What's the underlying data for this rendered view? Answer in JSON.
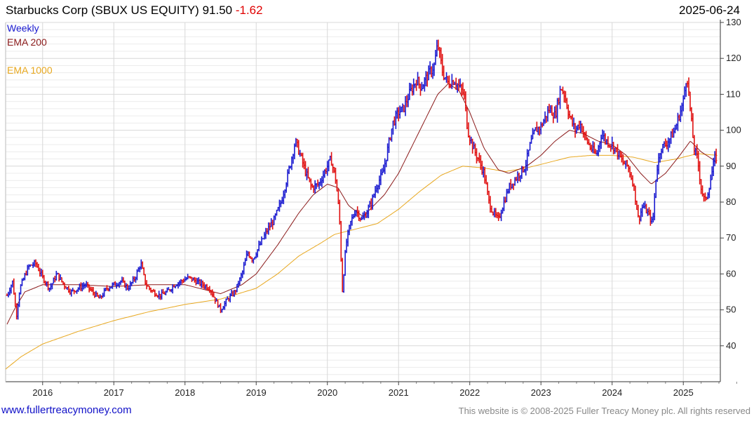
{
  "header": {
    "title": "Starbucks Corp (SBUX US EQUITY) 91.50",
    "change": "-1.62",
    "date": "2025-06-24"
  },
  "footer": {
    "link": "www.fullertreacymoney.com",
    "copyright": "This website is © 2008-2025 Fuller Treacy Money plc. All rights reserved"
  },
  "colors": {
    "up": "#1a1ad0",
    "down": "#e01010",
    "ema200": "#8b1a1a",
    "ema1000": "#e8a820",
    "grid": "#d8d8d8"
  },
  "chart_data": {
    "type": "line",
    "period": "Weekly",
    "legend": [
      "Weekly",
      "EMA 200",
      "EMA 1000"
    ],
    "ylim": [
      30,
      130
    ],
    "y_ticks": [
      40,
      50,
      60,
      70,
      80,
      90,
      100,
      110,
      120,
      130
    ],
    "x_ticks": [
      "2016",
      "2017",
      "2018",
      "2019",
      "2020",
      "2021",
      "2022",
      "2023",
      "2024",
      "2025"
    ],
    "xlim": [
      2015.48,
      2025.52
    ],
    "grid": true,
    "price": [
      [
        2015.5,
        54
      ],
      [
        2015.58,
        58
      ],
      [
        2015.63,
        48
      ],
      [
        2015.68,
        56
      ],
      [
        2015.8,
        62
      ],
      [
        2015.9,
        63
      ],
      [
        2016.0,
        59
      ],
      [
        2016.1,
        56
      ],
      [
        2016.2,
        60
      ],
      [
        2016.3,
        57
      ],
      [
        2016.4,
        55
      ],
      [
        2016.5,
        56
      ],
      [
        2016.6,
        57
      ],
      [
        2016.7,
        55
      ],
      [
        2016.8,
        53
      ],
      [
        2016.9,
        56
      ],
      [
        2017.0,
        57
      ],
      [
        2017.1,
        58
      ],
      [
        2017.2,
        56
      ],
      [
        2017.3,
        59
      ],
      [
        2017.38,
        63
      ],
      [
        2017.45,
        57
      ],
      [
        2017.55,
        55
      ],
      [
        2017.65,
        54
      ],
      [
        2017.75,
        55
      ],
      [
        2017.85,
        57
      ],
      [
        2017.95,
        58
      ],
      [
        2018.05,
        59
      ],
      [
        2018.15,
        58
      ],
      [
        2018.25,
        57
      ],
      [
        2018.35,
        56
      ],
      [
        2018.42,
        53
      ],
      [
        2018.5,
        50
      ],
      [
        2018.6,
        53
      ],
      [
        2018.7,
        55
      ],
      [
        2018.8,
        60
      ],
      [
        2018.88,
        66
      ],
      [
        2018.95,
        64
      ],
      [
        2019.05,
        68
      ],
      [
        2019.15,
        72
      ],
      [
        2019.25,
        75
      ],
      [
        2019.35,
        80
      ],
      [
        2019.45,
        88
      ],
      [
        2019.55,
        97
      ],
      [
        2019.62,
        93
      ],
      [
        2019.7,
        88
      ],
      [
        2019.78,
        84
      ],
      [
        2019.88,
        85
      ],
      [
        2019.95,
        88
      ],
      [
        2020.05,
        92
      ],
      [
        2020.12,
        86
      ],
      [
        2020.17,
        76
      ],
      [
        2020.21,
        55
      ],
      [
        2020.26,
        68
      ],
      [
        2020.32,
        74
      ],
      [
        2020.4,
        78
      ],
      [
        2020.48,
        75
      ],
      [
        2020.55,
        77
      ],
      [
        2020.62,
        80
      ],
      [
        2020.7,
        85
      ],
      [
        2020.78,
        88
      ],
      [
        2020.85,
        95
      ],
      [
        2020.92,
        102
      ],
      [
        2021.0,
        105
      ],
      [
        2021.07,
        106
      ],
      [
        2021.15,
        110
      ],
      [
        2021.25,
        114
      ],
      [
        2021.32,
        112
      ],
      [
        2021.4,
        115
      ],
      [
        2021.5,
        118
      ],
      [
        2021.55,
        124
      ],
      [
        2021.62,
        116
      ],
      [
        2021.7,
        113
      ],
      [
        2021.78,
        114
      ],
      [
        2021.85,
        112
      ],
      [
        2021.92,
        110
      ],
      [
        2021.97,
        100
      ],
      [
        2022.05,
        95
      ],
      [
        2022.12,
        92
      ],
      [
        2022.2,
        88
      ],
      [
        2022.27,
        80
      ],
      [
        2022.33,
        77
      ],
      [
        2022.4,
        75
      ],
      [
        2022.48,
        80
      ],
      [
        2022.55,
        84
      ],
      [
        2022.62,
        86
      ],
      [
        2022.7,
        88
      ],
      [
        2022.78,
        90
      ],
      [
        2022.85,
        96
      ],
      [
        2022.92,
        100
      ],
      [
        2023.0,
        101
      ],
      [
        2023.07,
        104
      ],
      [
        2023.12,
        106
      ],
      [
        2023.2,
        104
      ],
      [
        2023.28,
        112
      ],
      [
        2023.33,
        110
      ],
      [
        2023.4,
        104
      ],
      [
        2023.48,
        100
      ],
      [
        2023.55,
        102
      ],
      [
        2023.62,
        98
      ],
      [
        2023.7,
        95
      ],
      [
        2023.78,
        93
      ],
      [
        2023.85,
        99
      ],
      [
        2023.92,
        97
      ],
      [
        2024.0,
        96
      ],
      [
        2024.07,
        94
      ],
      [
        2024.15,
        91
      ],
      [
        2024.22,
        90
      ],
      [
        2024.3,
        85
      ],
      [
        2024.37,
        75
      ],
      [
        2024.43,
        79
      ],
      [
        2024.5,
        77
      ],
      [
        2024.57,
        74
      ],
      [
        2024.62,
        88
      ],
      [
        2024.68,
        95
      ],
      [
        2024.75,
        96
      ],
      [
        2024.82,
        98
      ],
      [
        2024.88,
        100
      ],
      [
        2024.94,
        104
      ],
      [
        2025.0,
        108
      ],
      [
        2025.05,
        116
      ],
      [
        2025.1,
        105
      ],
      [
        2025.15,
        95
      ],
      [
        2025.2,
        92
      ],
      [
        2025.25,
        84
      ],
      [
        2025.3,
        80
      ],
      [
        2025.35,
        83
      ],
      [
        2025.4,
        88
      ],
      [
        2025.45,
        93
      ],
      [
        2025.48,
        91.5
      ]
    ],
    "ema200": [
      [
        2015.5,
        46
      ],
      [
        2015.6,
        50
      ],
      [
        2015.75,
        55
      ],
      [
        2016.0,
        57
      ],
      [
        2016.5,
        57
      ],
      [
        2017.0,
        56.5
      ],
      [
        2017.5,
        57
      ],
      [
        2018.0,
        57
      ],
      [
        2018.5,
        54.5
      ],
      [
        2018.8,
        57
      ],
      [
        2019.0,
        60
      ],
      [
        2019.3,
        68
      ],
      [
        2019.6,
        77
      ],
      [
        2019.8,
        82
      ],
      [
        2020.0,
        85
      ],
      [
        2020.15,
        84
      ],
      [
        2020.3,
        79
      ],
      [
        2020.5,
        76
      ],
      [
        2020.8,
        82
      ],
      [
        2021.0,
        88
      ],
      [
        2021.3,
        100
      ],
      [
        2021.55,
        110
      ],
      [
        2021.7,
        113
      ],
      [
        2021.85,
        111
      ],
      [
        2022.0,
        105
      ],
      [
        2022.2,
        95
      ],
      [
        2022.4,
        89
      ],
      [
        2022.55,
        88
      ],
      [
        2022.8,
        90
      ],
      [
        2023.0,
        93
      ],
      [
        2023.2,
        97
      ],
      [
        2023.4,
        100
      ],
      [
        2023.6,
        99
      ],
      [
        2023.8,
        97
      ],
      [
        2024.0,
        96
      ],
      [
        2024.2,
        93
      ],
      [
        2024.4,
        88
      ],
      [
        2024.55,
        85
      ],
      [
        2024.75,
        88
      ],
      [
        2024.95,
        93
      ],
      [
        2025.1,
        97
      ],
      [
        2025.25,
        94
      ],
      [
        2025.48,
        91
      ]
    ],
    "ema1000": [
      [
        2015.48,
        33.5
      ],
      [
        2015.7,
        37
      ],
      [
        2016.0,
        40.5
      ],
      [
        2016.5,
        44
      ],
      [
        2017.0,
        47
      ],
      [
        2017.5,
        49.5
      ],
      [
        2018.0,
        51.5
      ],
      [
        2018.5,
        53
      ],
      [
        2019.0,
        56
      ],
      [
        2019.3,
        60
      ],
      [
        2019.6,
        65
      ],
      [
        2019.9,
        68.5
      ],
      [
        2020.1,
        71
      ],
      [
        2020.4,
        72.5
      ],
      [
        2020.7,
        74
      ],
      [
        2021.0,
        78
      ],
      [
        2021.3,
        83
      ],
      [
        2021.6,
        87.5
      ],
      [
        2021.9,
        90
      ],
      [
        2022.2,
        89.5
      ],
      [
        2022.5,
        88.5
      ],
      [
        2022.8,
        89.5
      ],
      [
        2023.1,
        91
      ],
      [
        2023.4,
        92.5
      ],
      [
        2023.7,
        93
      ],
      [
        2024.0,
        93
      ],
      [
        2024.3,
        92.5
      ],
      [
        2024.6,
        91
      ],
      [
        2024.9,
        92
      ],
      [
        2025.2,
        93.5
      ],
      [
        2025.48,
        93
      ]
    ]
  }
}
